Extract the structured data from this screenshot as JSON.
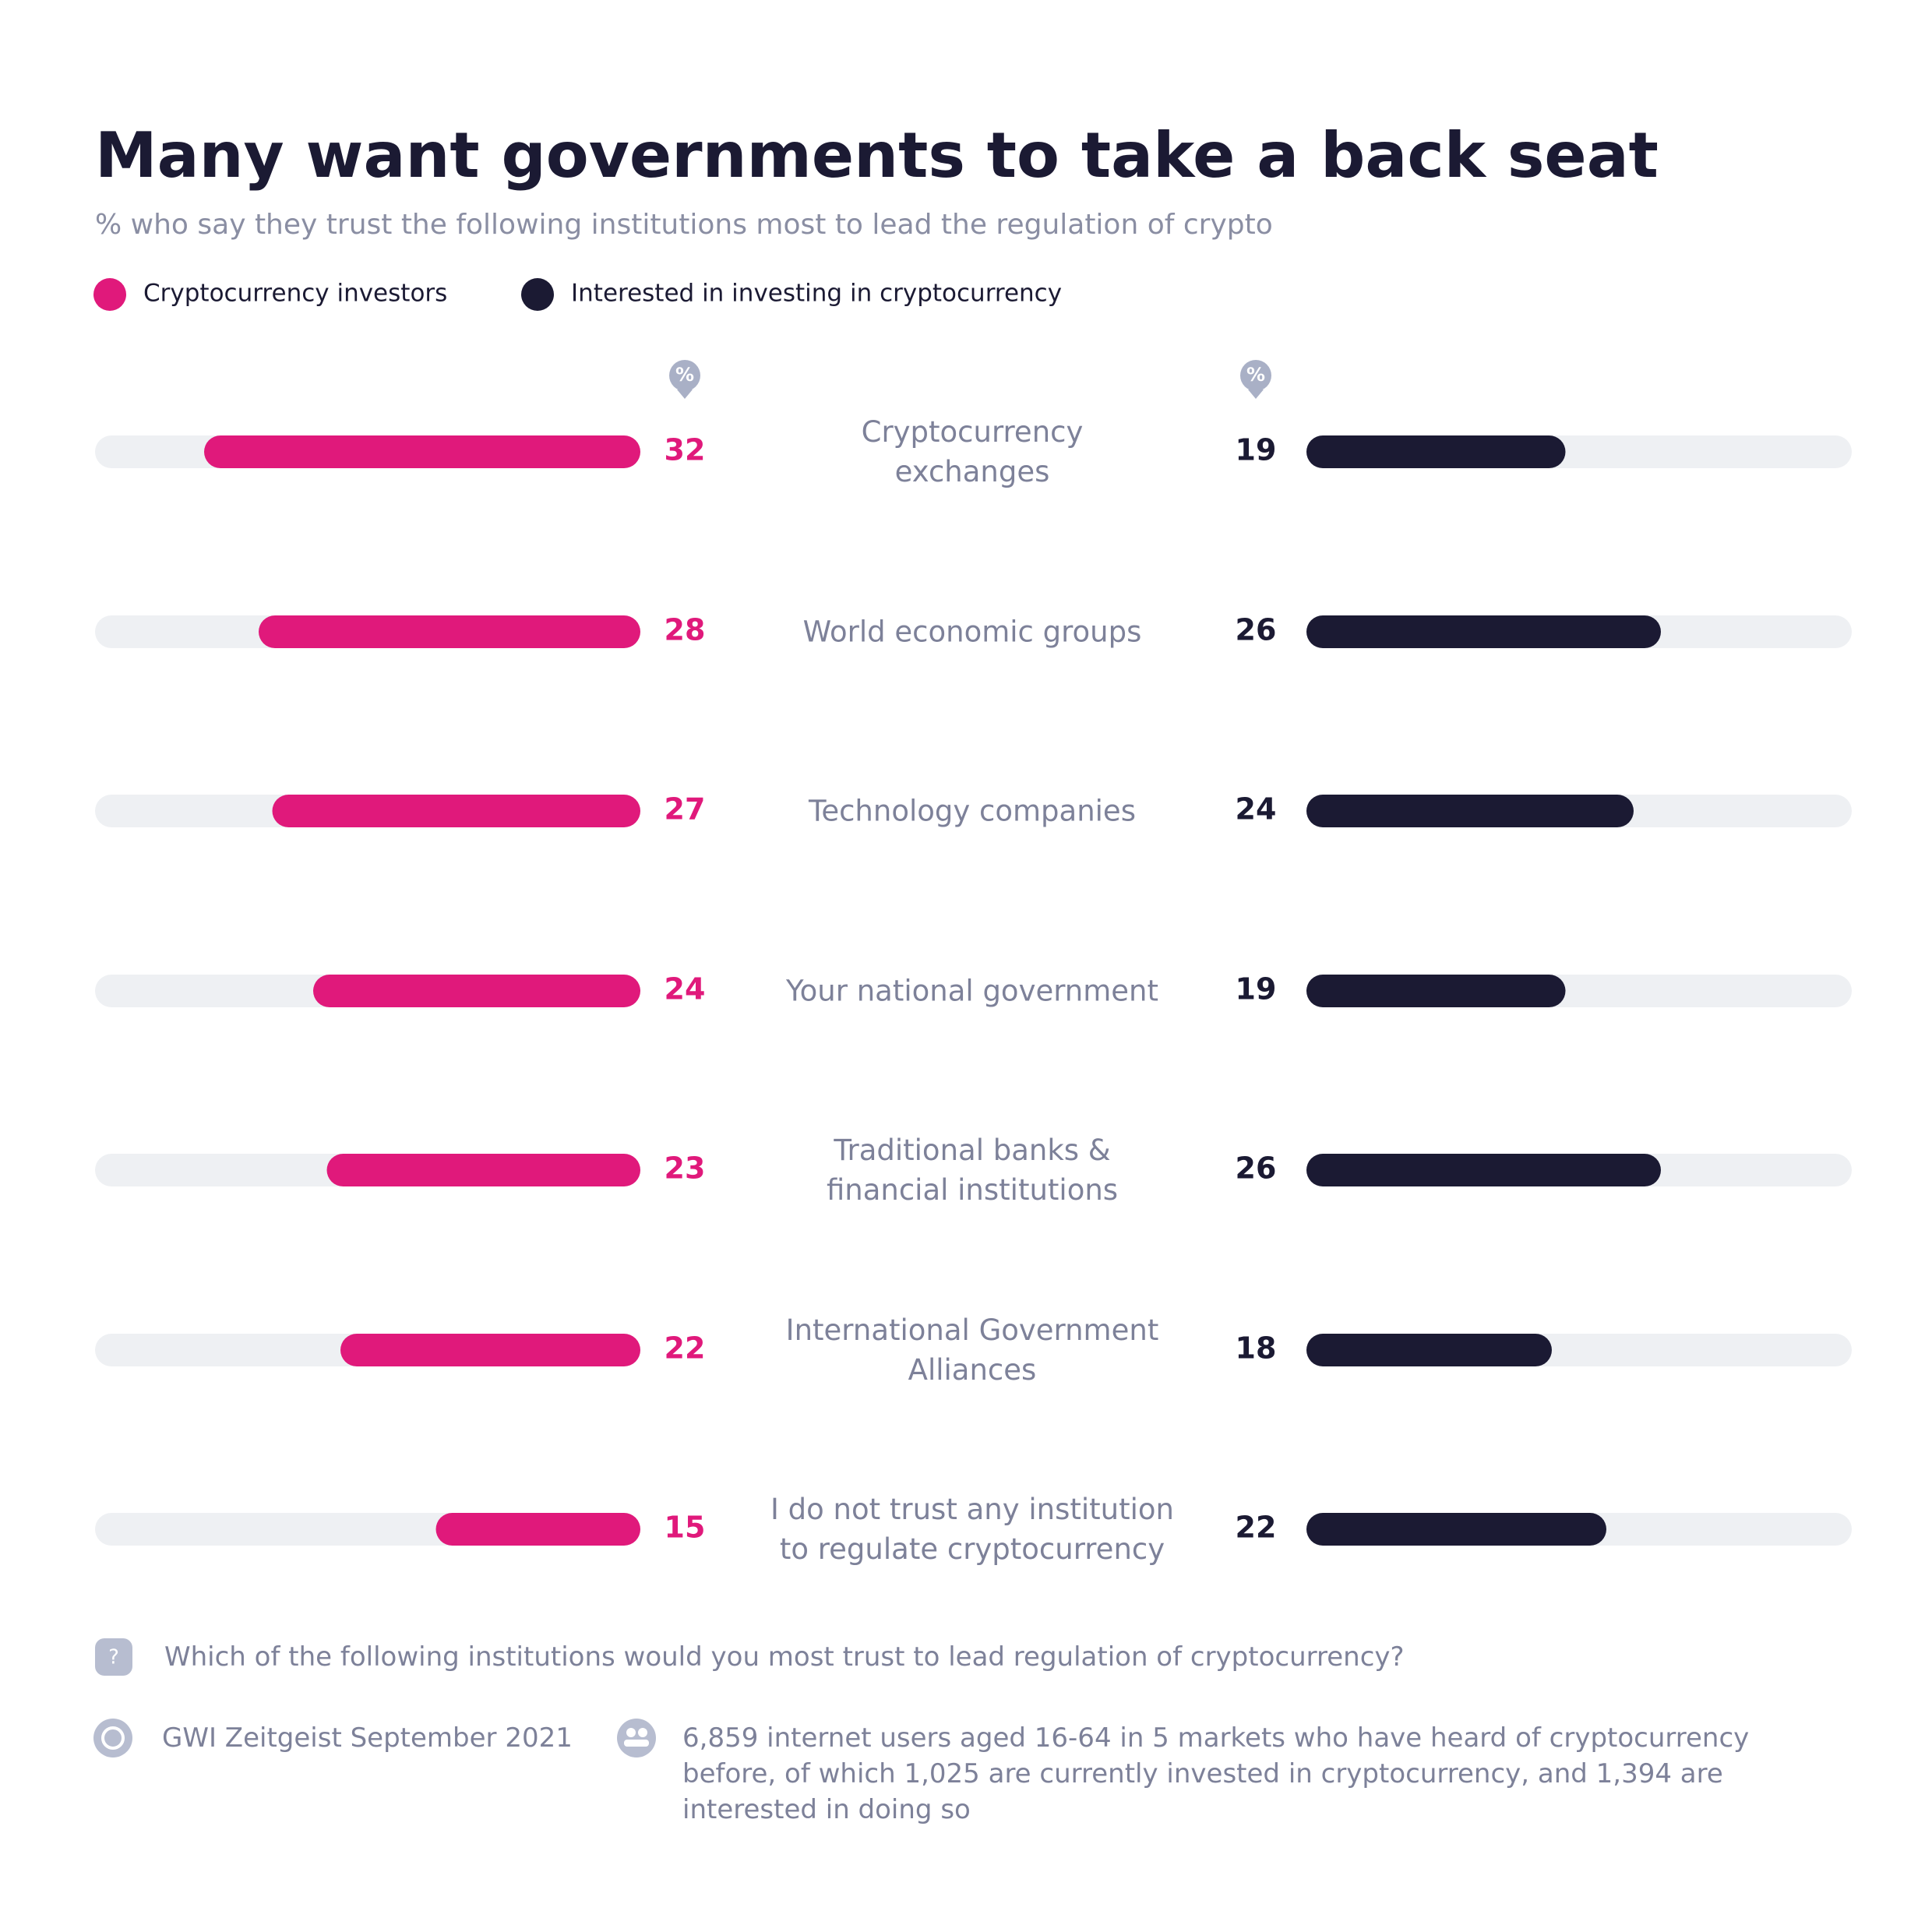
{
  "chart_data": {
    "type": "bar",
    "title": "Many want governments to take a back seat",
    "subtitle": "% who say they trust the following institutions most to lead the regulation of crypto",
    "unit": "%",
    "categories": [
      "Cryptocurrency\nexchanges",
      "World economic groups",
      "Technology companies",
      "Your national government",
      "Traditional banks &\nfinancial institutions",
      "International Government\nAlliances",
      "I do not trust any institution\nto regulate cryptocurrency"
    ],
    "series": [
      {
        "name": "Cryptocurrency investors",
        "color": "#e0197b",
        "values": [
          32,
          28,
          27,
          24,
          23,
          22,
          15
        ]
      },
      {
        "name": "Interested in investing in cryptocurrency",
        "color": "#1b1a33",
        "values": [
          19,
          26,
          24,
          19,
          26,
          18,
          22
        ]
      }
    ],
    "xlim": [
      0,
      40
    ]
  },
  "footer": {
    "question": "Which of the following institutions would you most trust to lead regulation of cryptocurrency?",
    "source": "GWI Zeitgeist September 2021",
    "sample": "6,859 internet users aged 16-64 in 5 markets who have heard of cryptocurrency before, of which 1,025 are currently invested in cryptocurrency, and 1,394 are interested in doing so"
  }
}
